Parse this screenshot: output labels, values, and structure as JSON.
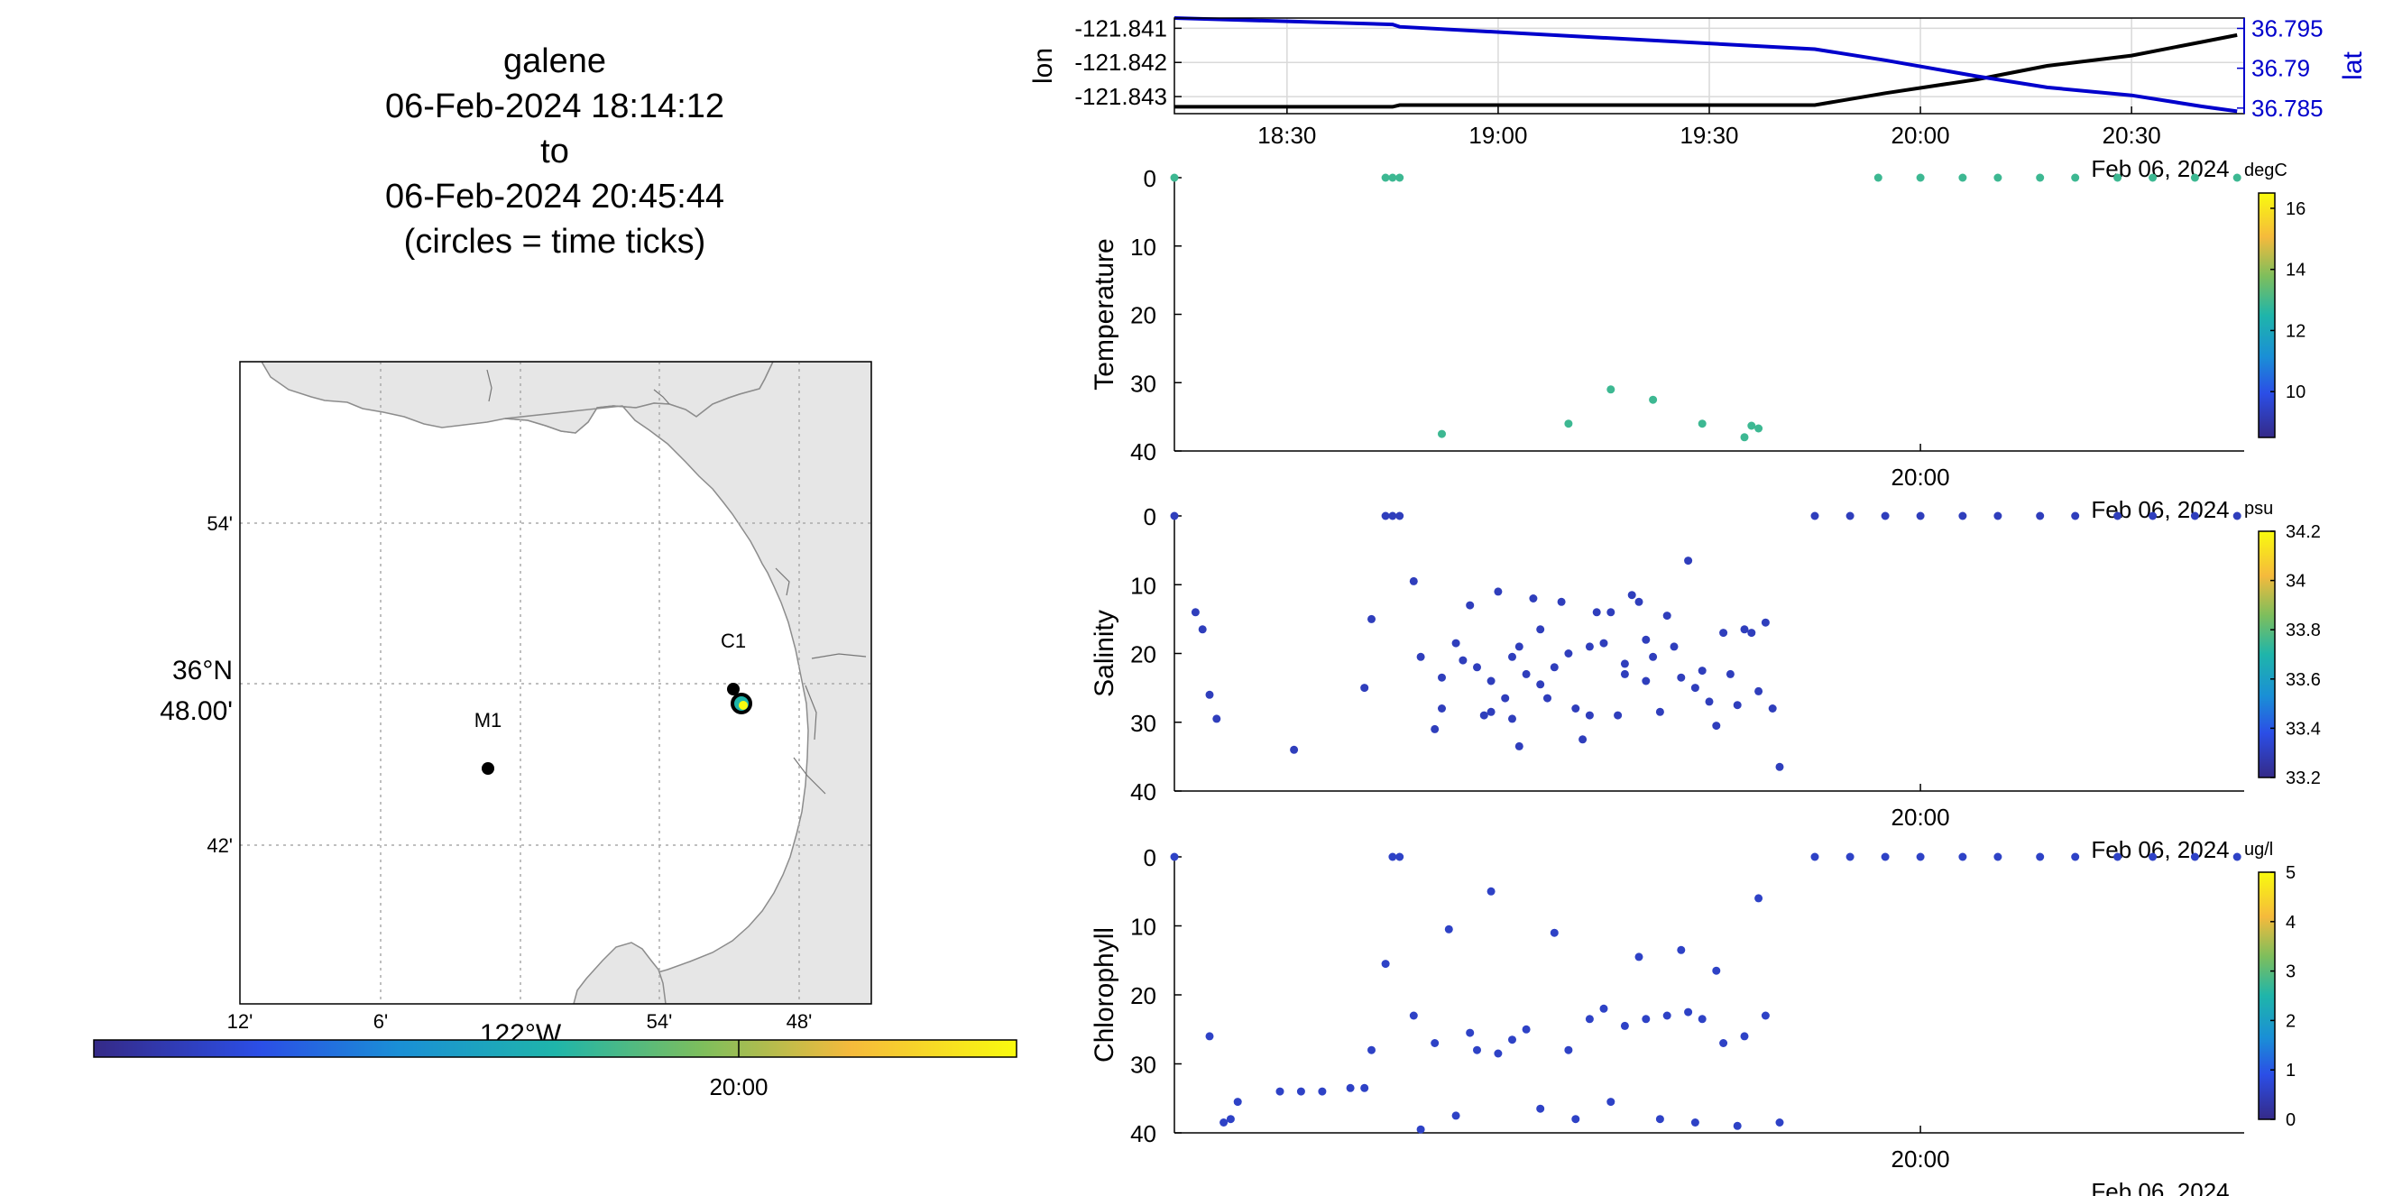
{
  "title": {
    "platform": "galene",
    "start": "06-Feb-2024 18:14:12",
    "to": "to",
    "end": "06-Feb-2024 20:45:44",
    "note": "(circles = time ticks)"
  },
  "map": {
    "lat_tick_labels": [
      "54'",
      "48.00'",
      "42'"
    ],
    "lat_degree_label": "36°N",
    "lon_tick_labels": [
      "12'",
      "6'",
      "54'",
      "48'"
    ],
    "lon_degree_label": "122°W",
    "stations": [
      {
        "name": "C1",
        "lon": -121.843,
        "lat": 36.797
      },
      {
        "name": "M1",
        "lon": -121.897,
        "lat": 36.747
      }
    ],
    "track_lon": -121.842,
    "track_lat": 36.79,
    "colorbar_label": "20:00",
    "colors": {
      "land": "#e6e6e6",
      "coast": "#9a9a9a",
      "grid": "#aaaaaa"
    }
  },
  "chart_data": [
    {
      "type": "line",
      "name": "position",
      "x": [
        "18:14",
        "18:45",
        "18:46",
        "19:45",
        "19:55",
        "20:08",
        "20:18",
        "20:30",
        "20:40",
        "20:45"
      ],
      "series": [
        {
          "name": "lon",
          "axis": "left",
          "color": "#000000",
          "values": [
            -121.8433,
            -121.8433,
            -121.84325,
            -121.84325,
            -121.8429,
            -121.8425,
            -121.8421,
            -121.8418,
            -121.8414,
            -121.8412
          ]
        },
        {
          "name": "lat",
          "axis": "right",
          "color": "#0000cc",
          "values": [
            36.7963,
            36.7955,
            36.7952,
            36.7924,
            36.791,
            36.789,
            36.7876,
            36.7866,
            36.7852,
            36.7846
          ]
        }
      ],
      "xlabel_ticks": [
        "18:30",
        "19:00",
        "19:30",
        "20:00",
        "20:30"
      ],
      "x_tick_times": [
        "18:30",
        "19:00",
        "19:30",
        "20:00",
        "20:30"
      ],
      "xlim": [
        "18:14",
        "20:46"
      ],
      "date_label": "Feb 06, 2024",
      "ylabel": "lon",
      "ylim": [
        -121.8435,
        -121.8407
      ],
      "yticks": [
        -121.841,
        -121.842,
        -121.843
      ],
      "ytick_labels": [
        "-121.841",
        "-121.842",
        "-121.843"
      ],
      "y2label": "lat",
      "y2lim": [
        36.7843,
        36.7963
      ],
      "y2ticks": [
        36.795,
        36.79,
        36.785
      ],
      "y2tick_labels": [
        "36.795",
        "36.79",
        "36.785"
      ],
      "grid": true
    },
    {
      "type": "scatter",
      "name": "temperature",
      "ylabel": "Temperature",
      "ylim": [
        40,
        0
      ],
      "yticks": [
        0,
        10,
        20,
        30,
        40
      ],
      "xtick_label": "20:00",
      "date_label": "Feb 06, 2024",
      "colorbar": {
        "unit": "degC",
        "range": [
          8.5,
          16.5
        ],
        "ticks": [
          16,
          14,
          12,
          10
        ]
      },
      "x": [
        "18:14",
        "18:44",
        "18:45",
        "18:46",
        "18:52",
        "19:10",
        "19:16",
        "19:22",
        "19:29",
        "19:35",
        "19:36",
        "19:37",
        "19:54",
        "20:00",
        "20:06",
        "20:11",
        "20:17",
        "20:22",
        "20:28",
        "20:33",
        "20:39",
        "20:45"
      ],
      "y": [
        0,
        0,
        0,
        0,
        37.5,
        36,
        31,
        32.5,
        36,
        38,
        36.3,
        36.7,
        0,
        0,
        0,
        0,
        0,
        0,
        0,
        0,
        0,
        0
      ],
      "values": [
        12.9,
        12.9,
        12.9,
        12.9,
        12.9,
        12.9,
        12.9,
        12.9,
        12.9,
        12.9,
        12.9,
        12.9,
        12.9,
        12.9,
        12.9,
        12.9,
        12.9,
        12.9,
        12.9,
        12.9,
        12.9,
        12.9
      ]
    },
    {
      "type": "scatter",
      "name": "salinity",
      "ylabel": "Salinity",
      "ylim": [
        40,
        0
      ],
      "yticks": [
        0,
        10,
        20,
        30,
        40
      ],
      "xtick_label": "20:00",
      "date_label": "Feb 06, 2024",
      "colorbar": {
        "unit": "psu",
        "range": [
          33.2,
          34.2
        ],
        "ticks": [
          34.2,
          34,
          33.8,
          33.6,
          33.4,
          33.2
        ]
      },
      "x": [
        "18:14",
        "18:17",
        "18:18",
        "18:19",
        "18:20",
        "18:31",
        "18:41",
        "18:42",
        "18:44",
        "18:45",
        "18:46",
        "18:48",
        "18:49",
        "18:51",
        "18:52",
        "18:52",
        "18:54",
        "18:55",
        "18:56",
        "18:57",
        "18:58",
        "18:59",
        "18:59",
        "19:00",
        "19:01",
        "19:02",
        "19:02",
        "19:03",
        "19:03",
        "19:04",
        "19:05",
        "19:06",
        "19:06",
        "19:07",
        "19:08",
        "19:09",
        "19:10",
        "19:11",
        "19:12",
        "19:13",
        "19:13",
        "19:14",
        "19:15",
        "19:16",
        "19:17",
        "19:18",
        "19:18",
        "19:19",
        "19:20",
        "19:21",
        "19:21",
        "19:22",
        "19:23",
        "19:24",
        "19:25",
        "19:26",
        "19:27",
        "19:28",
        "19:29",
        "19:30",
        "19:31",
        "19:32",
        "19:33",
        "19:34",
        "19:35",
        "19:36",
        "19:37",
        "19:38",
        "19:39",
        "19:40",
        "19:45",
        "19:50",
        "19:55",
        "20:00",
        "20:06",
        "20:11",
        "20:17",
        "20:22",
        "20:28",
        "20:33",
        "20:39",
        "20:45"
      ],
      "y": [
        0,
        14,
        16.5,
        26,
        29.5,
        34,
        25,
        15,
        0,
        0,
        0,
        9.5,
        20.5,
        31,
        28,
        23.5,
        18.5,
        21,
        13,
        22,
        29,
        24,
        28.5,
        11,
        26.5,
        20.5,
        29.5,
        33.5,
        19,
        23,
        12,
        16.5,
        24.5,
        26.5,
        22,
        12.5,
        20,
        28,
        32.5,
        19,
        29,
        14,
        18.5,
        14,
        29,
        23,
        21.5,
        11.5,
        12.5,
        18,
        24,
        20.5,
        28.5,
        14.5,
        19,
        23.5,
        6.5,
        25,
        22.5,
        27,
        30.5,
        17,
        23,
        27.5,
        16.5,
        17,
        25.5,
        15.5,
        28,
        36.5,
        0,
        0,
        0,
        0,
        0,
        0,
        0,
        0,
        0,
        0,
        0,
        0
      ],
      "values": [
        33.3,
        33.3,
        33.3,
        33.3,
        33.3,
        33.3,
        33.3,
        33.3,
        33.3,
        33.3,
        33.3,
        33.3,
        33.3,
        33.3,
        33.3,
        33.3,
        33.3,
        33.3,
        33.3,
        33.3,
        33.3,
        33.3,
        33.3,
        33.3,
        33.3,
        33.3,
        33.3,
        33.3,
        33.3,
        33.3,
        33.3,
        33.3,
        33.3,
        33.3,
        33.3,
        33.3,
        33.3,
        33.3,
        33.3,
        33.3,
        33.3,
        33.3,
        33.3,
        33.3,
        33.3,
        33.3,
        33.3,
        33.3,
        33.3,
        33.3,
        33.3,
        33.3,
        33.3,
        33.3,
        33.3,
        33.3,
        33.3,
        33.3,
        33.3,
        33.3,
        33.3,
        33.3,
        33.3,
        33.3,
        33.3,
        33.3,
        33.3,
        33.3,
        33.3,
        33.3,
        33.3,
        33.3,
        33.3,
        33.3,
        33.3,
        33.3,
        33.3,
        33.3,
        33.3,
        33.3,
        33.3,
        33.3
      ]
    },
    {
      "type": "scatter",
      "name": "chlorophyll",
      "ylabel": "Chlorophyll",
      "ylim": [
        40,
        0
      ],
      "yticks": [
        0,
        10,
        20,
        30,
        40
      ],
      "xtick_label": "20:00",
      "date_label": "Feb 06, 2024",
      "colorbar": {
        "unit": "ug/l",
        "range": [
          0,
          5
        ],
        "ticks": [
          5,
          4,
          3,
          2,
          1,
          0
        ]
      },
      "x": [
        "18:14",
        "18:19",
        "18:21",
        "18:22",
        "18:23",
        "18:29",
        "18:32",
        "18:35",
        "18:39",
        "18:41",
        "18:42",
        "18:44",
        "18:45",
        "18:46",
        "18:48",
        "18:49",
        "18:51",
        "18:53",
        "18:54",
        "18:56",
        "18:57",
        "18:59",
        "19:00",
        "19:02",
        "19:04",
        "19:06",
        "19:08",
        "19:10",
        "19:11",
        "19:13",
        "19:15",
        "19:16",
        "19:18",
        "19:20",
        "19:21",
        "19:23",
        "19:24",
        "19:26",
        "19:27",
        "19:28",
        "19:29",
        "19:31",
        "19:32",
        "19:34",
        "19:35",
        "19:37",
        "19:38",
        "19:40",
        "19:45",
        "19:50",
        "19:55",
        "20:00",
        "20:06",
        "20:11",
        "20:17",
        "20:22",
        "20:28",
        "20:33",
        "20:39",
        "20:45"
      ],
      "y": [
        0,
        26,
        38.5,
        38,
        35.5,
        34,
        34,
        34,
        33.5,
        33.5,
        28,
        15.5,
        0,
        0,
        23,
        39.5,
        27,
        10.5,
        37.5,
        25.5,
        28,
        5,
        28.5,
        26.5,
        25,
        36.5,
        11,
        28,
        38,
        23.5,
        22,
        35.5,
        24.5,
        14.5,
        23.5,
        38,
        23,
        13.5,
        22.5,
        38.5,
        23.5,
        16.5,
        27,
        39,
        26,
        6,
        23,
        38.5,
        0,
        0,
        0,
        0,
        0,
        0,
        0,
        0,
        0,
        0,
        0,
        0
      ],
      "values": [
        0.6,
        0.6,
        0.6,
        0.6,
        0.6,
        0.6,
        0.6,
        0.6,
        0.6,
        0.6,
        0.6,
        0.6,
        0.6,
        0.6,
        0.6,
        0.6,
        0.6,
        0.6,
        0.6,
        0.6,
        0.6,
        0.6,
        0.6,
        0.6,
        0.6,
        0.6,
        0.6,
        0.6,
        0.6,
        0.6,
        0.6,
        0.6,
        0.6,
        0.6,
        0.6,
        0.6,
        0.6,
        0.6,
        0.6,
        0.6,
        0.6,
        0.6,
        0.6,
        0.6,
        0.6,
        0.6,
        0.6,
        0.6,
        0.6,
        0.6,
        0.6,
        0.6,
        0.6,
        0.6,
        0.6,
        0.6,
        0.6,
        0.6,
        0.6,
        0.6
      ]
    }
  ]
}
